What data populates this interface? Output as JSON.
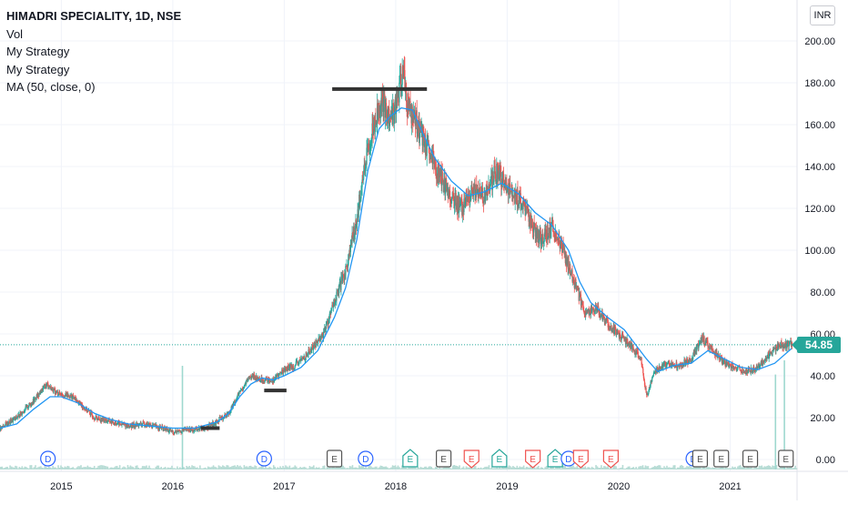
{
  "legend": {
    "symbol_title": "HIMADRI SPECIALITY, 1D, NSE",
    "indicators": [
      "Vol",
      "My Strategy",
      "My Strategy",
      "MA (50, close, 0)"
    ]
  },
  "currency": "INR",
  "last_price": "54.85",
  "colors": {
    "up": "#26a69a",
    "down": "#ef5350",
    "ma_line": "#2196f3",
    "event_dividend": "#2962ff",
    "event_earnings_up": "#26a69a",
    "event_earnings_down": "#ef5350",
    "event_earnings_neutral": "#555555",
    "strategy_level": "#333333",
    "volume": "#b7dcd5"
  },
  "chart_data": {
    "type": "candlestick",
    "title": "HIMADRI SPECIALITY, 1D, NSE",
    "ylim": [
      0,
      210
    ],
    "y_ticks": [
      "0.00",
      "20.00",
      "40.00",
      "60.00",
      "80.00",
      "100.00",
      "120.00",
      "140.00",
      "160.00",
      "180.00",
      "200.00"
    ],
    "xlim": [
      2014.45,
      2021.6
    ],
    "x_ticks": [
      "2015",
      "2016",
      "2017",
      "2018",
      "2019",
      "2020",
      "2021"
    ],
    "price_path": [
      [
        2014.45,
        15
      ],
      [
        2014.6,
        20
      ],
      [
        2014.75,
        28
      ],
      [
        2014.87,
        36
      ],
      [
        2014.95,
        32
      ],
      [
        2015.1,
        30
      ],
      [
        2015.2,
        25
      ],
      [
        2015.3,
        20
      ],
      [
        2015.45,
        18
      ],
      [
        2015.6,
        16
      ],
      [
        2015.75,
        17
      ],
      [
        2015.9,
        15
      ],
      [
        2016.0,
        13
      ],
      [
        2016.1,
        14
      ],
      [
        2016.3,
        15
      ],
      [
        2016.5,
        22
      ],
      [
        2016.6,
        32
      ],
      [
        2016.7,
        40
      ],
      [
        2016.8,
        38
      ],
      [
        2016.9,
        38
      ],
      [
        2017.0,
        43
      ],
      [
        2017.1,
        45
      ],
      [
        2017.2,
        50
      ],
      [
        2017.35,
        60
      ],
      [
        2017.45,
        75
      ],
      [
        2017.55,
        90
      ],
      [
        2017.65,
        115
      ],
      [
        2017.72,
        140
      ],
      [
        2017.8,
        160
      ],
      [
        2017.87,
        172
      ],
      [
        2017.95,
        162
      ],
      [
        2018.03,
        175
      ],
      [
        2018.07,
        188
      ],
      [
        2018.1,
        170
      ],
      [
        2018.2,
        160
      ],
      [
        2018.3,
        145
      ],
      [
        2018.4,
        135
      ],
      [
        2018.5,
        125
      ],
      [
        2018.6,
        120
      ],
      [
        2018.7,
        128
      ],
      [
        2018.8,
        125
      ],
      [
        2018.9,
        138
      ],
      [
        2019.0,
        130
      ],
      [
        2019.1,
        125
      ],
      [
        2019.2,
        115
      ],
      [
        2019.3,
        105
      ],
      [
        2019.4,
        112
      ],
      [
        2019.5,
        100
      ],
      [
        2019.6,
        85
      ],
      [
        2019.7,
        70
      ],
      [
        2019.8,
        72
      ],
      [
        2019.9,
        65
      ],
      [
        2020.0,
        60
      ],
      [
        2020.1,
        55
      ],
      [
        2020.2,
        48
      ],
      [
        2020.25,
        30
      ],
      [
        2020.32,
        42
      ],
      [
        2020.45,
        46
      ],
      [
        2020.55,
        45
      ],
      [
        2020.65,
        48
      ],
      [
        2020.75,
        58
      ],
      [
        2020.85,
        52
      ],
      [
        2020.95,
        46
      ],
      [
        2021.05,
        44
      ],
      [
        2021.15,
        42
      ],
      [
        2021.25,
        44
      ],
      [
        2021.35,
        50
      ],
      [
        2021.45,
        55
      ],
      [
        2021.55,
        54.85
      ]
    ],
    "ma_path": [
      [
        2014.45,
        15
      ],
      [
        2014.6,
        17
      ],
      [
        2014.75,
        24
      ],
      [
        2014.9,
        30
      ],
      [
        2015.0,
        30
      ],
      [
        2015.15,
        27
      ],
      [
        2015.3,
        22
      ],
      [
        2015.45,
        19
      ],
      [
        2015.6,
        17
      ],
      [
        2015.8,
        16
      ],
      [
        2016.0,
        15
      ],
      [
        2016.2,
        15
      ],
      [
        2016.4,
        18
      ],
      [
        2016.5,
        22
      ],
      [
        2016.6,
        30
      ],
      [
        2016.7,
        36
      ],
      [
        2016.8,
        39
      ],
      [
        2016.9,
        38
      ],
      [
        2017.0,
        40
      ],
      [
        2017.15,
        44
      ],
      [
        2017.3,
        52
      ],
      [
        2017.45,
        68
      ],
      [
        2017.55,
        82
      ],
      [
        2017.65,
        105
      ],
      [
        2017.75,
        138
      ],
      [
        2017.85,
        158
      ],
      [
        2017.95,
        164
      ],
      [
        2018.05,
        168
      ],
      [
        2018.15,
        167
      ],
      [
        2018.25,
        155
      ],
      [
        2018.35,
        144
      ],
      [
        2018.5,
        133
      ],
      [
        2018.65,
        126
      ],
      [
        2018.8,
        128
      ],
      [
        2018.95,
        132
      ],
      [
        2019.1,
        127
      ],
      [
        2019.25,
        118
      ],
      [
        2019.4,
        112
      ],
      [
        2019.55,
        100
      ],
      [
        2019.65,
        85
      ],
      [
        2019.75,
        75
      ],
      [
        2019.9,
        68
      ],
      [
        2020.05,
        62
      ],
      [
        2020.15,
        55
      ],
      [
        2020.25,
        48
      ],
      [
        2020.35,
        42
      ],
      [
        2020.5,
        45
      ],
      [
        2020.65,
        46
      ],
      [
        2020.8,
        52
      ],
      [
        2020.95,
        48
      ],
      [
        2021.1,
        44
      ],
      [
        2021.25,
        43
      ],
      [
        2021.4,
        46
      ],
      [
        2021.55,
        53
      ]
    ],
    "strategy_levels": [
      {
        "from": 2016.25,
        "to": 2016.42,
        "value": 15
      },
      {
        "from": 2016.82,
        "to": 2017.02,
        "value": 33
      },
      {
        "from": 2017.43,
        "to": 2018.28,
        "value": 177
      }
    ],
    "volume_spikes": [
      {
        "x": 2016.08,
        "value": 0.95
      },
      {
        "x": 2021.4,
        "value": 0.87
      },
      {
        "x": 2021.48,
        "value": 1.0
      }
    ],
    "events": [
      {
        "type": "dividend",
        "label": "D",
        "x": 2014.88
      },
      {
        "type": "dividend",
        "label": "D",
        "x": 2016.82
      },
      {
        "type": "earnings",
        "label": "E",
        "x": 2017.45,
        "style": "neutral"
      },
      {
        "type": "dividend",
        "label": "D",
        "x": 2017.73
      },
      {
        "type": "earnings",
        "label": "E",
        "x": 2018.13,
        "style": "up"
      },
      {
        "type": "earnings",
        "label": "E",
        "x": 2018.43,
        "style": "neutral"
      },
      {
        "type": "earnings",
        "label": "E",
        "x": 2018.68,
        "style": "down"
      },
      {
        "type": "earnings",
        "label": "E",
        "x": 2018.93,
        "style": "up"
      },
      {
        "type": "earnings",
        "label": "E",
        "x": 2019.23,
        "style": "down"
      },
      {
        "type": "earnings",
        "label": "E",
        "x": 2019.43,
        "style": "up"
      },
      {
        "type": "dividend",
        "label": "D",
        "x": 2019.55
      },
      {
        "type": "earnings",
        "label": "E",
        "x": 2019.66,
        "style": "down"
      },
      {
        "type": "earnings",
        "label": "E",
        "x": 2019.93,
        "style": "down"
      },
      {
        "type": "dividend",
        "label": "D",
        "x": 2020.67
      },
      {
        "type": "earnings",
        "label": "E",
        "x": 2020.73,
        "style": "neutral"
      },
      {
        "type": "earnings",
        "label": "E",
        "x": 2020.92,
        "style": "neutral"
      },
      {
        "type": "earnings",
        "label": "E",
        "x": 2021.18,
        "style": "neutral"
      },
      {
        "type": "earnings",
        "label": "E",
        "x": 2021.5,
        "style": "neutral"
      }
    ],
    "last_value": 54.85
  }
}
